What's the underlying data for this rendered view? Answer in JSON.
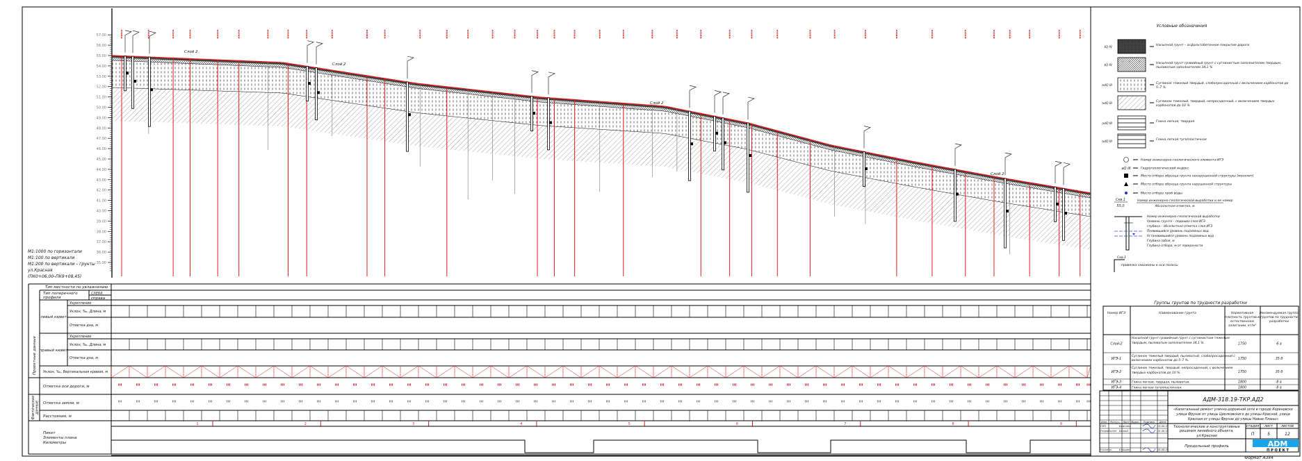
{
  "notes": [
    "М1:1000 по горизонтали",
    "М1:100 по вертикали",
    "М1:200 по вертикали – грунты",
    "ул.Красная",
    "(ПК0+06,00–ПК9+08,45)"
  ],
  "axis": {
    "ticks": [
      "57.00",
      "56.00",
      "55.00",
      "54.00",
      "53.00",
      "52.00",
      "51.00",
      "50.00",
      "49.00",
      "48.00",
      "47.00",
      "46.00",
      "45.00",
      "44.00",
      "43.00",
      "42.00",
      "41.00",
      "40.00",
      "39.00",
      "38.00",
      "37.00",
      "36.00",
      "35.00"
    ]
  },
  "profile_labels": [
    "Слой 2",
    "Слой 2",
    "Слой 2",
    "Слой 2"
  ],
  "colors": {
    "ground_line": "#e21b1b",
    "design_marks": "#e21b1b",
    "frame": "#000000",
    "logo": "#1aa3e8"
  },
  "legend": {
    "title": "Условные обозначения",
    "soils": [
      {
        "index": "tQ IV",
        "text": "Насыпной грунт – асфальтобетонное покрытие дороги"
      },
      {
        "index": "tQ IV",
        "text": "Насыпной грунт гравийный грунт с суглинистым заполнителем твердым, пылеватым заполнителем 34,1 %"
      },
      {
        "index": "adQ III",
        "text": "Суглинок тяжелый твердый, слабопросадочный с включением карбонатов до 5–7 %"
      },
      {
        "index": "adQ III",
        "text": "Суглинок тяжелый, твердый, непросадочный, с включением твердых карбонатов до 10 %"
      },
      {
        "index": "adQ III",
        "text": "Глина легкая, твердая"
      },
      {
        "index": "adQ III",
        "text": "Глина легкая тугопластичная"
      }
    ],
    "symbols": [
      {
        "icon": "ige-number-circle-icon",
        "text": "Номер инженерно-геологического элемента ИГЭ"
      },
      {
        "icon": "hydro-index-icon",
        "text": "Гидрогеологический индекс"
      },
      {
        "icon": "monolith-sample-square-icon",
        "text": "Место отбора образца грунта ненарушенной структуры (монолит)"
      },
      {
        "icon": "disturbed-sample-triangle-icon",
        "text": "Место отбора образца грунта нарушенной структуры"
      },
      {
        "icon": "water-sample-dot-icon",
        "text": "Место отбора проб воды"
      }
    ],
    "well_fraction": {
      "top": "Скв.1",
      "bottom": "55,0",
      "text_top": "Номер инженерно-геологической выработки и ее номер",
      "text_bottom": "Абсолютная отметка, м"
    },
    "borehole_notes": [
      "Номер инженерно-геологической выработки",
      "Уровень грунта – подошва слоя ИГЭ",
      "глубина – абсолютная отметка слоя ИГЭ",
      "Появившийся уровень подземных вод",
      "Установившийся уровень подземных вод",
      "Глубина забоя, м",
      "Глубина отбора, м от поверхности"
    ],
    "offset_note": {
      "label": "Скв.1",
      "text": "привязка скважины к оси полосы"
    }
  },
  "soil_table": {
    "title": "Группы грунтов по трудности разработки",
    "headers": [
      "Номер ИГЭ",
      "Наименование грунта",
      "Нормативная плотность грунтов в естественном залегании, кг/м³",
      "Рекомендуемая группа грунтов по трудности разработки"
    ],
    "rows": [
      [
        "Слой-2",
        "Насыпной грунт гравийный грунт с суглинистым тяжелым твердым, пылеватым заполнителем 34,1 %.",
        "1750",
        "6 а"
      ],
      [
        "ИГЭ-1",
        "Суглинок тяжелый твердый, пылеватый, слабопросадочный с включением карбонатов до 5–7 %.",
        "1750",
        "35 б"
      ],
      [
        "ИГЭ-2",
        "Суглинок тяжелый, твердый, непросадочный, с включением твердых карбонатов до 10 %.",
        "1750",
        "35 б"
      ],
      [
        "ИГЭ-3",
        "Глина легкая, твердая, пылеватая.",
        "1800",
        "8 а"
      ],
      [
        "ИГЭ-4",
        "Глина легкая тугопластичная.",
        "1800",
        "8 а"
      ]
    ]
  },
  "title_block": {
    "code": "АДМ-318.19-ТКР.АД2",
    "project": [
      "«Капитальный ремонт улично-дорожной сети в городе Кореновске",
      "улица Фрунзе от улицы Циолковского до улицы Красной, улица",
      "Красная от улицы Фрунзе до улицы Новые Планы»"
    ],
    "section": [
      "Технологические и конструктивные",
      "решения линейного объекта.",
      "ул.Красная"
    ],
    "sheet_name": "Продольный профиль",
    "col_headers": [
      "Изм.",
      "Кол.уч.",
      "Лист",
      "№док.",
      "Подпись",
      "Дата"
    ],
    "staff": [
      {
        "role": "ГИП",
        "name": "Брагина",
        "date": "01.08.19"
      },
      {
        "role": "Разработал",
        "name": "Белый",
        "date": "01.08.19"
      },
      {
        "role": "Н.контр.",
        "name": "Ельшин",
        "date": "01.08.19"
      }
    ],
    "stage_headers": [
      "стадия",
      "лист",
      "листов"
    ],
    "stage_values": [
      "П",
      "5",
      "12"
    ],
    "logo": "ADM",
    "logo_sub": "П Р О Е К Т",
    "format": "Формат А3х4"
  },
  "bottom_table": {
    "terrain_type": "Тип местности по увлажнению",
    "cross_profile": "Тип поперечного профиля",
    "left": "слева",
    "right": "справа",
    "design_group": "Проектные данные",
    "actual_group": "Фактические данные",
    "left_ditch": "левый кювет",
    "right_ditch": "правый кювет",
    "reinforcement": "Укрепление",
    "slope": "Уклон, ‰, Длина, м",
    "bottom_mark": "Отметка дна, м",
    "vertical_curve": "Уклон, ‰, Вертикальная кривая, м",
    "axis_mark": "Отметка оси дороги, м",
    "ground_mark": "Отметка земли, м",
    "distances": "Расстояния, м",
    "plan": [
      "Пикет",
      "Элементы плана",
      "Километры"
    ],
    "pickets": [
      "1",
      "2",
      "3",
      "4",
      "5",
      "6",
      "7",
      "8",
      "9"
    ]
  }
}
